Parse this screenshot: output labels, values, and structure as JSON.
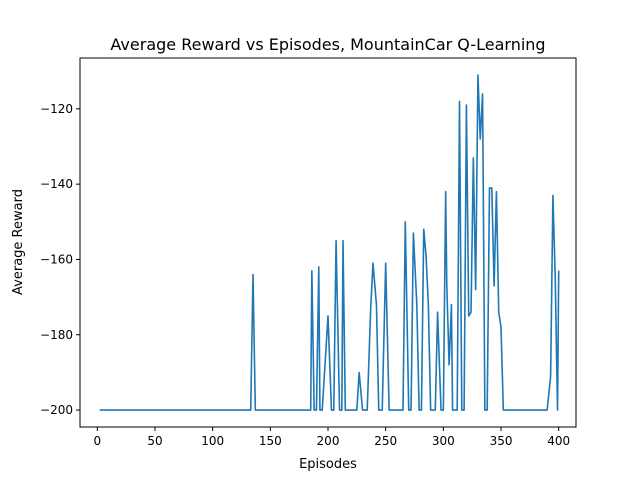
{
  "chart_data": {
    "type": "line",
    "title": "Average Reward vs Episodes, MountainCar Q-Learning",
    "xlabel": "Episodes",
    "ylabel": "Average Reward",
    "xlim": [
      -15,
      415
    ],
    "ylim": [
      -204.5,
      -106.5
    ],
    "xticks": [
      0,
      50,
      100,
      150,
      200,
      250,
      300,
      350,
      400
    ],
    "yticks": [
      -200,
      -180,
      -160,
      -140,
      -120
    ],
    "grid": false,
    "line_color": "#1f77b4",
    "series": [
      {
        "x": [
          2,
          133,
          135,
          137,
          185,
          186,
          188,
          190,
          192,
          193,
          195,
          197,
          200,
          203,
          205,
          207,
          210,
          212,
          213,
          215,
          219,
          223,
          225,
          227,
          230,
          234,
          237,
          239,
          242,
          244,
          247,
          250,
          253,
          260,
          265,
          267,
          270,
          272,
          274,
          277,
          279,
          281,
          283,
          285,
          287,
          289,
          291,
          293,
          295,
          298,
          300,
          302,
          303,
          305,
          307,
          308,
          310,
          312,
          314,
          316,
          318,
          320,
          322,
          324,
          326,
          328,
          330,
          332,
          334,
          336,
          338,
          340,
          342,
          344,
          346,
          348,
          350,
          352,
          354,
          356,
          380,
          390,
          393,
          395,
          397,
          399,
          400
        ],
        "y": [
          -200,
          -200,
          -164,
          -200,
          -200,
          -163,
          -200,
          -200,
          -162,
          -200,
          -200,
          -190,
          -175,
          -200,
          -200,
          -155,
          -200,
          -200,
          -155,
          -200,
          -200,
          -200,
          -200,
          -190,
          -200,
          -200,
          -173,
          -161,
          -172,
          -200,
          -200,
          -161,
          -200,
          -200,
          -200,
          -150,
          -200,
          -200,
          -153,
          -172,
          -200,
          -200,
          -152,
          -159,
          -172,
          -200,
          -200,
          -200,
          -174,
          -200,
          -200,
          -142,
          -167,
          -188,
          -172,
          -200,
          -200,
          -200,
          -118,
          -200,
          -200,
          -119,
          -175,
          -174,
          -133,
          -168,
          -111,
          -128,
          -116,
          -200,
          -200,
          -141,
          -141,
          -167,
          -142,
          -174,
          -178,
          -200,
          -200,
          -200,
          -200,
          -200,
          -191,
          -143,
          -165,
          -200,
          -163
        ]
      }
    ]
  }
}
